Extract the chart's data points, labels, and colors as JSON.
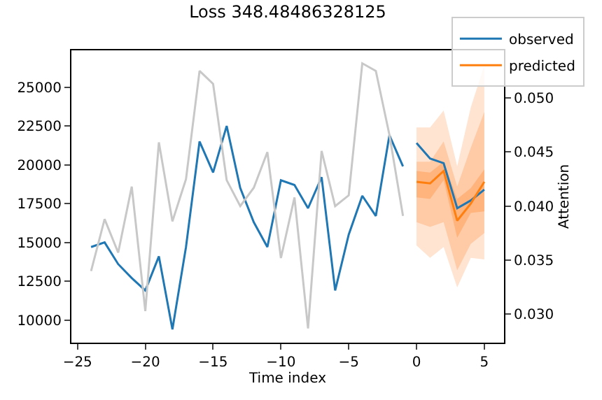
{
  "chart_data": {
    "type": "line",
    "title": "Loss 348.48486328125",
    "xlabel": "Time index",
    "y2label": "Attention",
    "series": [
      {
        "type": "area",
        "color": "#ffe4d1",
        "x": [
          0,
          1,
          2,
          3,
          4,
          5
        ],
        "values": [
          null,
          null,
          null,
          null,
          null,
          null
        ],
        "lower": [
          14800,
          14000,
          14700,
          12100,
          14000,
          13900
        ],
        "upper": [
          22400,
          22400,
          23500,
          19900,
          23700,
          26400
        ]
      },
      {
        "type": "area",
        "color": "#ffcba6",
        "x": [
          0,
          1,
          2,
          3,
          4,
          5
        ],
        "values": [
          null,
          null,
          null,
          null,
          null,
          null
        ],
        "lower": [
          16300,
          16000,
          16300,
          13200,
          14900,
          15600
        ],
        "upper": [
          20200,
          20200,
          21500,
          18600,
          21100,
          23400
        ]
      },
      {
        "type": "area",
        "color": "#ffb47e",
        "x": [
          0,
          1,
          2,
          3,
          4,
          5
        ],
        "values": [
          null,
          null,
          null,
          null,
          null,
          null
        ],
        "lower": [
          17900,
          17800,
          19000,
          15300,
          16900,
          17000
        ],
        "upper": [
          19600,
          19500,
          20200,
          17800,
          18500,
          19700
        ]
      },
      {
        "axis": "y2",
        "color": "#c8c8c8",
        "x": [
          -24,
          -23,
          -22,
          -21,
          -20,
          -19,
          -18,
          -17,
          -16,
          -15,
          -14,
          -13,
          -12,
          -11,
          -10,
          -9,
          -8,
          -7,
          -6,
          -5,
          -4,
          -3,
          -2,
          -1
        ],
        "values": [
          0.034,
          0.0388,
          0.0357,
          0.0418,
          0.0303,
          0.0459,
          0.0386,
          0.0425,
          0.0525,
          0.0513,
          0.0424,
          0.04,
          0.0417,
          0.045,
          0.0352,
          0.0408,
          0.0287,
          0.0451,
          0.04,
          0.041,
          0.0532,
          0.0525,
          0.0466,
          0.0391
        ]
      },
      {
        "name": "observed",
        "color": "#1f77b4",
        "x": [
          -24,
          -23,
          -22,
          -21,
          -20,
          -19,
          -18,
          -17,
          -16,
          -15,
          -14,
          -13,
          -12,
          -11,
          -10,
          -9,
          -8,
          -7,
          -6,
          -5,
          -4,
          -3,
          -2,
          -1,
          -0.5,
          0,
          1,
          2,
          3,
          4,
          5
        ],
        "values": [
          14700,
          15000,
          13600,
          12700,
          11900,
          14100,
          9400,
          14700,
          21500,
          19500,
          22500,
          18500,
          16300,
          14700,
          19000,
          18700,
          17200,
          19200,
          11900,
          15500,
          18000,
          16700,
          21900,
          19900,
          null,
          21400,
          20400,
          20100,
          17200,
          17700,
          18400
        ]
      },
      {
        "name": "predicted",
        "color": "#ff7f0e",
        "x": [
          0,
          1,
          2,
          3,
          4,
          5
        ],
        "values": [
          18900,
          18800,
          19600,
          16400,
          17500,
          18900
        ]
      }
    ],
    "xlim": [
      -25.45,
      6.45
    ],
    "xticks": [
      {
        "value": -25,
        "label": "−25"
      },
      {
        "value": -20,
        "label": "−20"
      },
      {
        "value": -15,
        "label": "−15"
      },
      {
        "value": -10,
        "label": "−10"
      },
      {
        "value": -5,
        "label": "−5"
      },
      0,
      5
    ],
    "ylim": [
      8540,
      27370
    ],
    "yticks": [
      10000,
      12500,
      15000,
      17500,
      20000,
      22500,
      25000
    ],
    "y2lim": [
      0.02738,
      0.0544
    ],
    "y2ticks": [
      {
        "value": 0.03,
        "label": "0.030"
      },
      {
        "value": 0.035,
        "label": "0.035"
      },
      {
        "value": 0.04,
        "label": "0.040"
      },
      {
        "value": 0.045,
        "label": "0.045"
      },
      {
        "value": 0.05,
        "label": "0.050"
      }
    ],
    "legend": "top right",
    "marker": "none",
    "line_style": "solid"
  }
}
